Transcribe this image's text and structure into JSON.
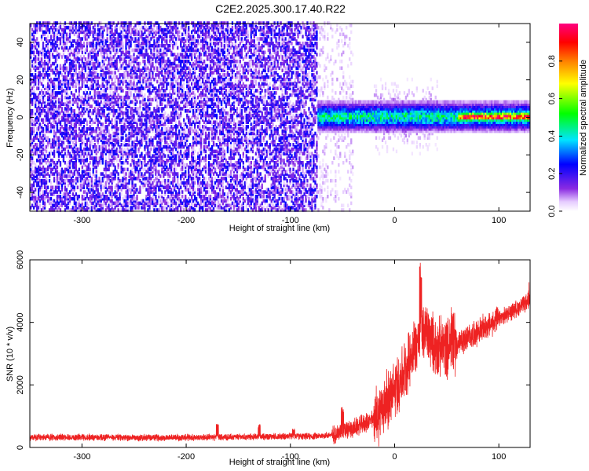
{
  "title": "C2E2.2025.300.17.40.R22",
  "colors": {
    "snr_line": "#ee2222",
    "frame": "#000000",
    "background": "#ffffff"
  },
  "chart_data": [
    {
      "type": "heatmap",
      "xlabel": "Height of straight line (km)",
      "ylabel": "Frequency (Hz)",
      "xlim": [
        -350,
        130
      ],
      "ylim": [
        -50,
        50
      ],
      "xticks": [
        -300,
        -200,
        -100,
        0,
        100
      ],
      "yticks": [
        -40,
        -20,
        0,
        20,
        40
      ],
      "colorbar": {
        "label": "Normalized spectral amplitude",
        "range": [
          0.0,
          1.0
        ],
        "ticks": [
          "0.0",
          "0.2",
          "0.4",
          "0.6",
          "0.8"
        ],
        "colormap": "rainbow: white → violet → blue → cyan → green → yellow → orange → red → magenta"
      },
      "regions": [
        {
          "x_range": [
            -350,
            -75
          ],
          "freq_range": [
            -50,
            50
          ],
          "amplitude": 0.1,
          "description": "broadband noise"
        },
        {
          "x_range": [
            -75,
            -40
          ],
          "freq_range": [
            -50,
            50
          ],
          "amplitude": 0.03,
          "description": "sparse faint noise"
        },
        {
          "x_range": [
            -75,
            130
          ],
          "freq_center": 0,
          "freq_halfwidth": 5,
          "amplitude": 0.45,
          "description": "carrier near 0 Hz"
        },
        {
          "x_range": [
            -20,
            40
          ],
          "freq_range": [
            -20,
            20
          ],
          "amplitude": 0.2,
          "description": "broadened carrier"
        },
        {
          "x_range": [
            60,
            130
          ],
          "freq_center": 0,
          "freq_halfwidth": 2,
          "amplitude": 0.95,
          "description": "strong narrow carrier"
        }
      ]
    },
    {
      "type": "line",
      "xlabel": "Height of straight line (km)",
      "ylabel": "SNR (10 * v/v)",
      "xlim": [
        -350,
        130
      ],
      "ylim": [
        0,
        6000
      ],
      "xticks": [
        -300,
        -200,
        -100,
        0,
        100
      ],
      "yticks": [
        0,
        2000,
        4000,
        6000
      ],
      "series": [
        {
          "x": [
            -350,
            -300,
            -250,
            -200,
            -150,
            -100,
            -80,
            -60,
            -40,
            -20,
            0,
            10,
            20,
            30,
            40,
            50,
            60,
            70,
            80,
            90,
            100,
            110,
            120,
            130
          ],
          "values": [
            320,
            330,
            310,
            320,
            330,
            360,
            350,
            400,
            600,
            900,
            1800,
            2500,
            3300,
            3700,
            3200,
            3200,
            3300,
            3500,
            3700,
            3900,
            4100,
            4300,
            4500,
            4700
          ]
        }
      ],
      "spikes": [
        {
          "x": -170,
          "value": 800
        },
        {
          "x": -130,
          "value": 750
        },
        {
          "x": -97,
          "value": 600
        },
        {
          "x": -50,
          "value": 1300
        },
        {
          "x": 25,
          "value": 6000
        },
        {
          "x": 55,
          "value": 4500
        },
        {
          "x": 128,
          "value": 5300
        }
      ]
    }
  ]
}
